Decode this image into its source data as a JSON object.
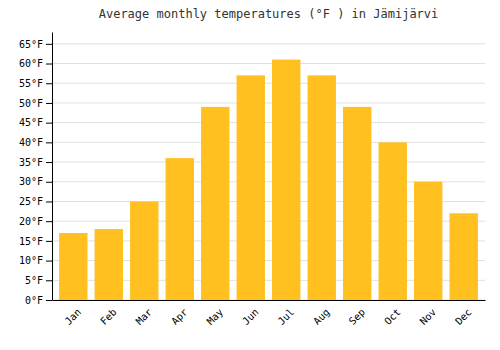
{
  "chart_data": {
    "type": "bar",
    "title": "Average monthly temperatures (°F ) in Jämijärvi",
    "categories": [
      "Jan",
      "Feb",
      "Mar",
      "Apr",
      "May",
      "Jun",
      "Jul",
      "Aug",
      "Sep",
      "Oct",
      "Nov",
      "Dec"
    ],
    "values": [
      17,
      18,
      25,
      36,
      49,
      57,
      61,
      57,
      49,
      40,
      30,
      22
    ],
    "color": "#FFC020",
    "ylim": [
      0,
      68
    ],
    "yticks": [
      {
        "value": 0,
        "label": "0°F"
      },
      {
        "value": 5,
        "label": "5°F"
      },
      {
        "value": 10,
        "label": "10°F"
      },
      {
        "value": 15,
        "label": "15°F"
      },
      {
        "value": 20,
        "label": "20°F"
      },
      {
        "value": 25,
        "label": "25°F"
      },
      {
        "value": 30,
        "label": "30°F"
      },
      {
        "value": 35,
        "label": "35°F"
      },
      {
        "value": 40,
        "label": "40°F"
      },
      {
        "value": 45,
        "label": "45°F"
      },
      {
        "value": 50,
        "label": "50°F"
      },
      {
        "value": 55,
        "label": "55°F"
      },
      {
        "value": 60,
        "label": "60°F"
      },
      {
        "value": 65,
        "label": "65°F"
      }
    ],
    "grid": true
  }
}
